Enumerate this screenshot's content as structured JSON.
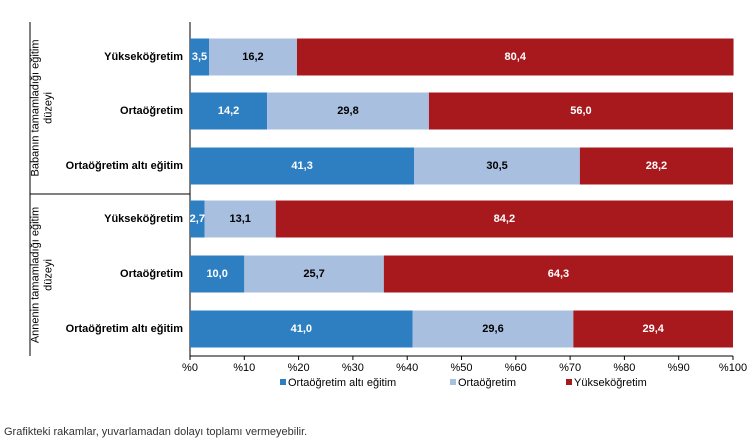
{
  "chart_data": {
    "type": "bar",
    "orientation": "horizontal",
    "stacked": true,
    "groups": [
      {
        "label": "Babanın tamamladığı eğitim düzeyi",
        "categories": [
          "Yükseköğretim",
          "Ortaöğretim",
          "Ortaöğretim altı eğitim"
        ],
        "series_values": [
          [
            3.5,
            14.2,
            41.3
          ],
          [
            16.2,
            29.8,
            30.5
          ],
          [
            80.4,
            56.0,
            28.2
          ]
        ]
      },
      {
        "label": "Annenin tamamladığı eğitim düzeyi",
        "categories": [
          "Yükseköğretim",
          "Ortaöğretim",
          "Ortaöğretim altı eğitim"
        ],
        "series_values": [
          [
            2.7,
            10.0,
            41.0
          ],
          [
            13.1,
            25.7,
            29.6
          ],
          [
            84.2,
            64.3,
            29.4
          ]
        ]
      }
    ],
    "series": [
      {
        "name": "Ortaöğretim altı eğitim",
        "color": "#2e7fc1"
      },
      {
        "name": "Ortaöğretim",
        "color": "#a8bfe0"
      },
      {
        "name": "Yükseköğretim",
        "color": "#a8191d"
      }
    ],
    "x_ticks": [
      "%0",
      "%10",
      "%20",
      "%30",
      "%40",
      "%50",
      "%60",
      "%70",
      "%80",
      "%90",
      "%100"
    ],
    "xlim": [
      0,
      100
    ],
    "legend_position": "bottom"
  },
  "footnote": "Grafikteki rakamlar, yuvarlamadan dolayı toplamı vermeyebilir."
}
